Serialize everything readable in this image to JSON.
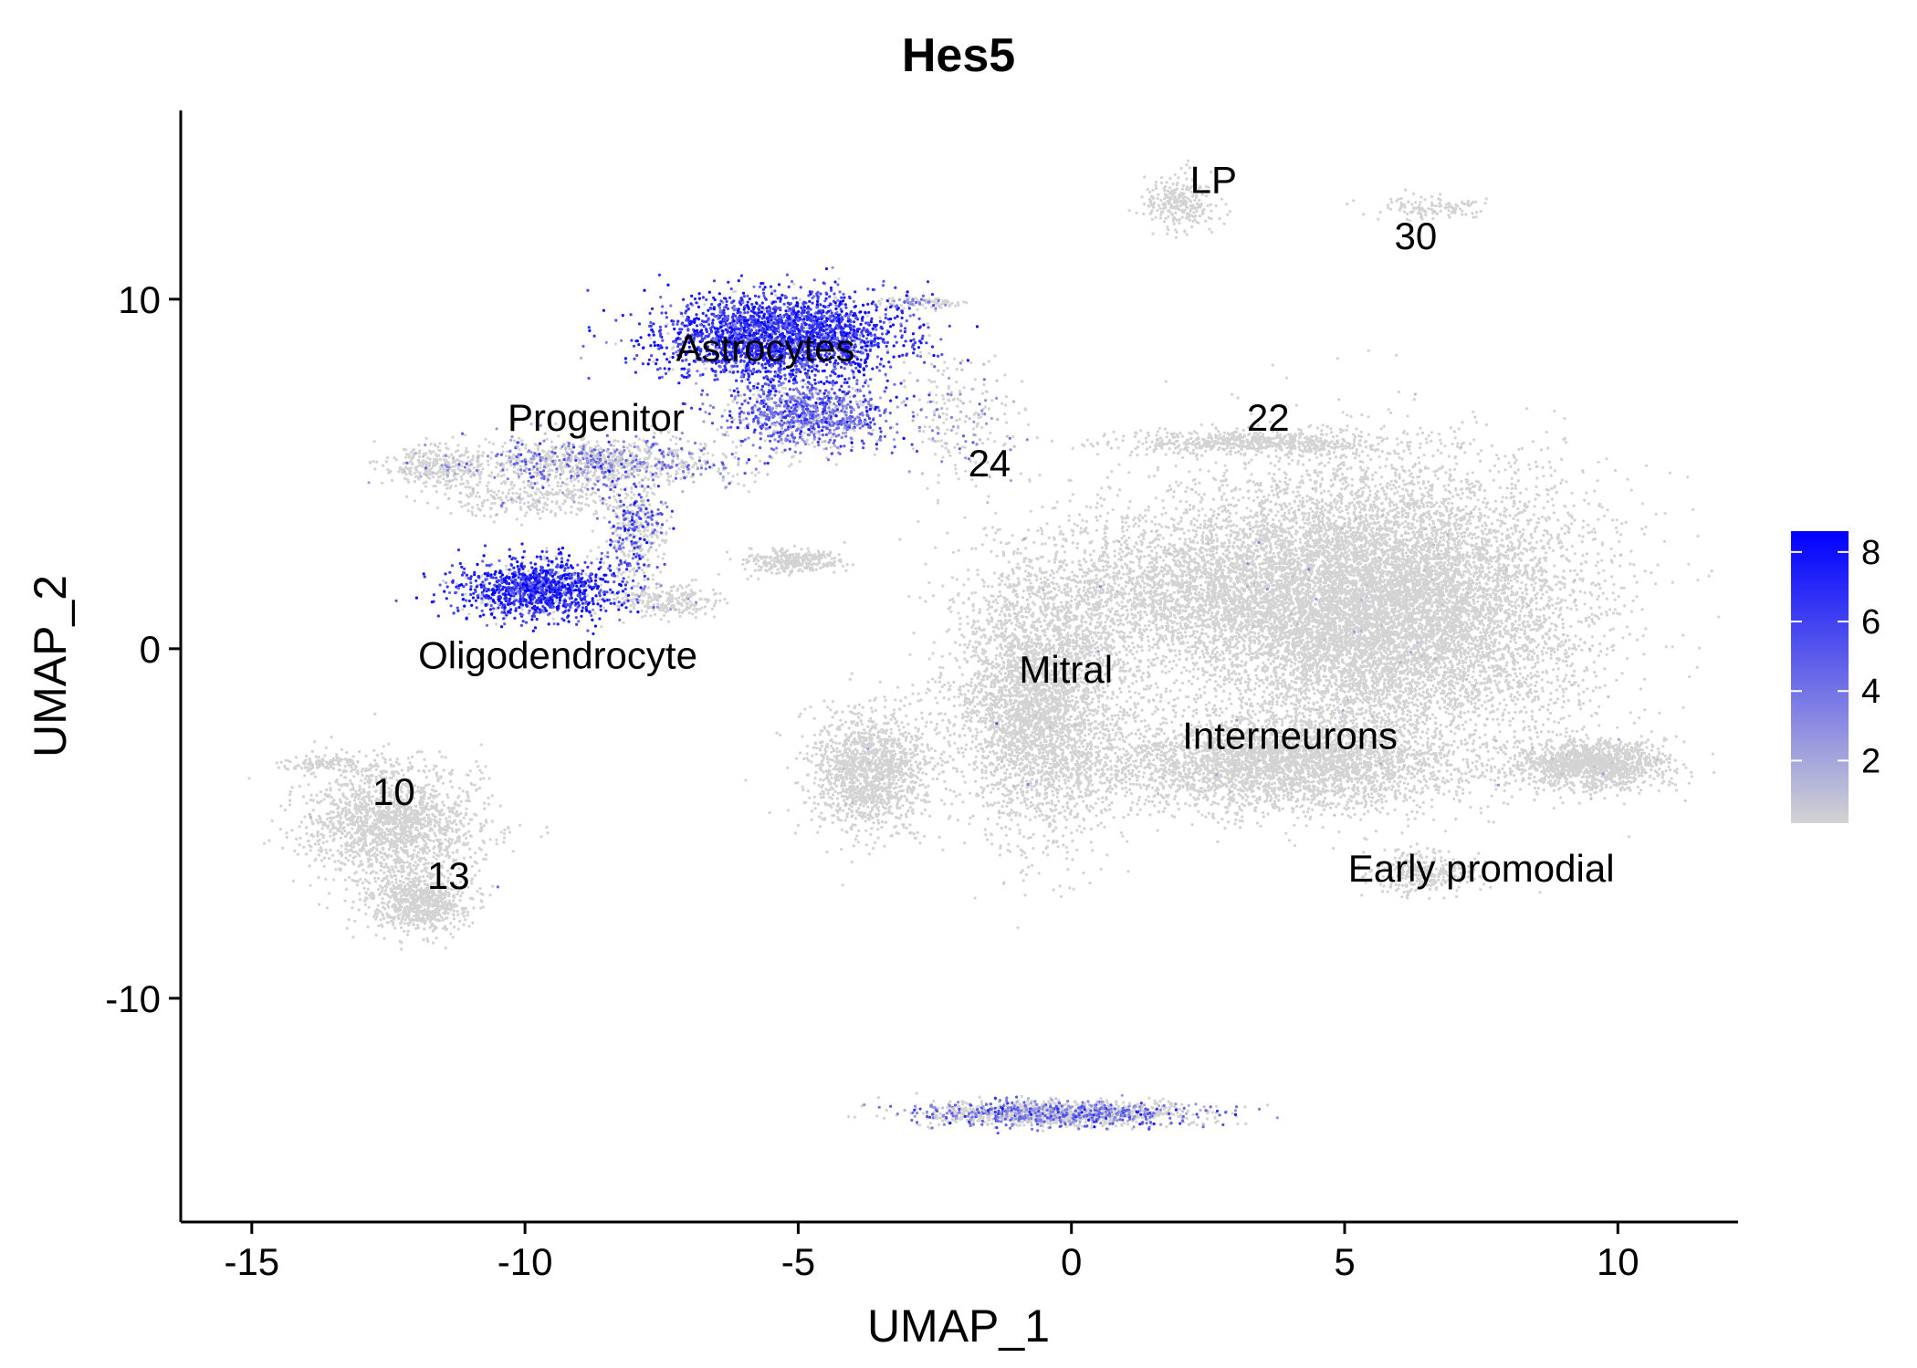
{
  "chart_data": {
    "type": "scatter",
    "title": "Hes5",
    "xlabel": "UMAP_1",
    "ylabel": "UMAP_2",
    "xlim": [
      -16.3,
      12.2
    ],
    "ylim": [
      -16.4,
      15.4
    ],
    "xticks": [
      -15,
      -10,
      -5,
      0,
      5,
      10
    ],
    "yticks": [
      -10,
      0,
      10
    ],
    "grid": false,
    "colorbar": {
      "title": "",
      "min": 0.2,
      "max": 8.6,
      "ticks": [
        2,
        4,
        6,
        8
      ],
      "low_color": "#d3d3d3",
      "high_color": "#0000ff",
      "placement": "right"
    },
    "cluster_labels": [
      {
        "text": "LP",
        "x": 2.6,
        "y": 13.4
      },
      {
        "text": "30",
        "x": 6.3,
        "y": 11.8
      },
      {
        "text": "Astrocytes",
        "x": -5.6,
        "y": 8.6
      },
      {
        "text": "Progenitor",
        "x": -8.7,
        "y": 6.6
      },
      {
        "text": "22",
        "x": 3.6,
        "y": 6.6
      },
      {
        "text": "24",
        "x": -1.5,
        "y": 5.3
      },
      {
        "text": "Oligodendrocyte",
        "x": -9.4,
        "y": -0.2
      },
      {
        "text": "Mitral",
        "x": -0.1,
        "y": -0.6
      },
      {
        "text": "Interneurons",
        "x": 4.0,
        "y": -2.5
      },
      {
        "text": "10",
        "x": -12.4,
        "y": -4.1
      },
      {
        "text": "13",
        "x": -11.4,
        "y": -6.5
      },
      {
        "text": "Early promodial",
        "x": 7.5,
        "y": -6.3
      }
    ],
    "clusters": [
      {
        "name": "LP",
        "cx": 2.0,
        "cy": 12.8,
        "rx": 0.65,
        "ry": 0.8,
        "n": 260,
        "expr_mean": 0.15,
        "expr_prob": 0.0
      },
      {
        "name": "30",
        "cx": 6.6,
        "cy": 12.6,
        "rx": 1.0,
        "ry": 0.3,
        "n": 120,
        "expr_mean": 0.15,
        "expr_prob": 0.0
      },
      {
        "name": "Astrocytes",
        "cx": -5.3,
        "cy": 8.9,
        "rx": 2.2,
        "ry": 1.25,
        "n": 2600,
        "expr_mean": 6.5,
        "expr_prob": 0.92
      },
      {
        "name": "Astrocytes-lower",
        "cx": -4.8,
        "cy": 6.7,
        "rx": 1.5,
        "ry": 1.0,
        "n": 1000,
        "expr_mean": 4.8,
        "expr_prob": 0.75
      },
      {
        "name": "Astrocyte-tail",
        "cx": -2.8,
        "cy": 9.9,
        "rx": 0.7,
        "ry": 0.15,
        "n": 90,
        "expr_mean": 3.0,
        "expr_prob": 0.3
      },
      {
        "name": "Progenitor",
        "cx": -8.6,
        "cy": 5.3,
        "rx": 2.6,
        "ry": 0.7,
        "n": 1000,
        "expr_mean": 3.5,
        "expr_prob": 0.35
      },
      {
        "name": "Progenitor-left",
        "cx": -11.6,
        "cy": 5.2,
        "rx": 0.9,
        "ry": 0.6,
        "n": 300,
        "expr_mean": 1.0,
        "expr_prob": 0.05
      },
      {
        "name": "Progenitor-branch",
        "cx": -9.8,
        "cy": 4.3,
        "rx": 1.6,
        "ry": 0.5,
        "n": 250,
        "expr_mean": 1.0,
        "expr_prob": 0.05
      },
      {
        "name": "Oligo-bridge",
        "cx": -8.0,
        "cy": 3.3,
        "rx": 0.6,
        "ry": 1.6,
        "n": 420,
        "expr_mean": 5.0,
        "expr_prob": 0.45
      },
      {
        "name": "Oligodendrocyte",
        "cx": -9.8,
        "cy": 1.7,
        "rx": 1.4,
        "ry": 0.85,
        "n": 1200,
        "expr_mean": 7.0,
        "expr_prob": 0.85
      },
      {
        "name": "Oligo-right",
        "cx": -7.4,
        "cy": 1.4,
        "rx": 1.0,
        "ry": 0.45,
        "n": 220,
        "expr_mean": 1.0,
        "expr_prob": 0.05
      },
      {
        "name": "24",
        "cx": -2.0,
        "cy": 6.6,
        "rx": 1.1,
        "ry": 1.9,
        "n": 220,
        "expr_mean": 2.0,
        "expr_prob": 0.3
      },
      {
        "name": "mid-small",
        "cx": -5.1,
        "cy": 2.5,
        "rx": 0.9,
        "ry": 0.35,
        "n": 300,
        "expr_mean": 0.15,
        "expr_prob": 0.0
      },
      {
        "name": "22",
        "cx": 3.3,
        "cy": 5.9,
        "rx": 2.4,
        "ry": 0.35,
        "n": 600,
        "expr_mean": 0.15,
        "expr_prob": 0.0
      },
      {
        "name": "Mitral",
        "cx": -0.6,
        "cy": -1.6,
        "rx": 1.6,
        "ry": 3.6,
        "n": 3500,
        "expr_mean": 0.3,
        "expr_prob": 0.004
      },
      {
        "name": "Mitral-left",
        "cx": -3.7,
        "cy": -3.5,
        "rx": 1.1,
        "ry": 1.7,
        "n": 1400,
        "expr_mean": 0.3,
        "expr_prob": 0.004
      },
      {
        "name": "central-web",
        "cx": 2.0,
        "cy": 1.8,
        "rx": 3.2,
        "ry": 2.2,
        "n": 2300,
        "expr_mean": 0.3,
        "expr_prob": 0.004
      },
      {
        "name": "Interneurons",
        "cx": 5.6,
        "cy": 1.2,
        "rx": 3.6,
        "ry": 4.0,
        "n": 10500,
        "expr_mean": 0.3,
        "expr_prob": 0.006
      },
      {
        "name": "Interneurons-lower",
        "cx": 3.8,
        "cy": -3.3,
        "rx": 3.3,
        "ry": 1.3,
        "n": 3200,
        "expr_mean": 0.3,
        "expr_prob": 0.004
      },
      {
        "name": "right-arm",
        "cx": 9.5,
        "cy": -3.3,
        "rx": 1.4,
        "ry": 0.7,
        "n": 1300,
        "expr_mean": 0.3,
        "expr_prob": 0.004
      },
      {
        "name": "Early promodial",
        "cx": 6.4,
        "cy": -6.4,
        "rx": 0.9,
        "ry": 0.6,
        "n": 300,
        "expr_mean": 0.3,
        "expr_prob": 0.004
      },
      {
        "name": "10",
        "cx": -12.4,
        "cy": -5.0,
        "rx": 1.6,
        "ry": 1.7,
        "n": 1700,
        "expr_mean": 0.15,
        "expr_prob": 0.002
      },
      {
        "name": "10-arm",
        "cx": -13.7,
        "cy": -3.3,
        "rx": 0.8,
        "ry": 0.25,
        "n": 120,
        "expr_mean": 0.15,
        "expr_prob": 0.0
      },
      {
        "name": "13",
        "cx": -11.9,
        "cy": -7.3,
        "rx": 0.9,
        "ry": 0.9,
        "n": 700,
        "expr_mean": 0.15,
        "expr_prob": 0.0
      },
      {
        "name": "bottom-strip",
        "cx": -0.3,
        "cy": -13.3,
        "rx": 2.6,
        "ry": 0.35,
        "n": 1400,
        "expr_mean": 4.0,
        "expr_prob": 0.35
      }
    ]
  }
}
